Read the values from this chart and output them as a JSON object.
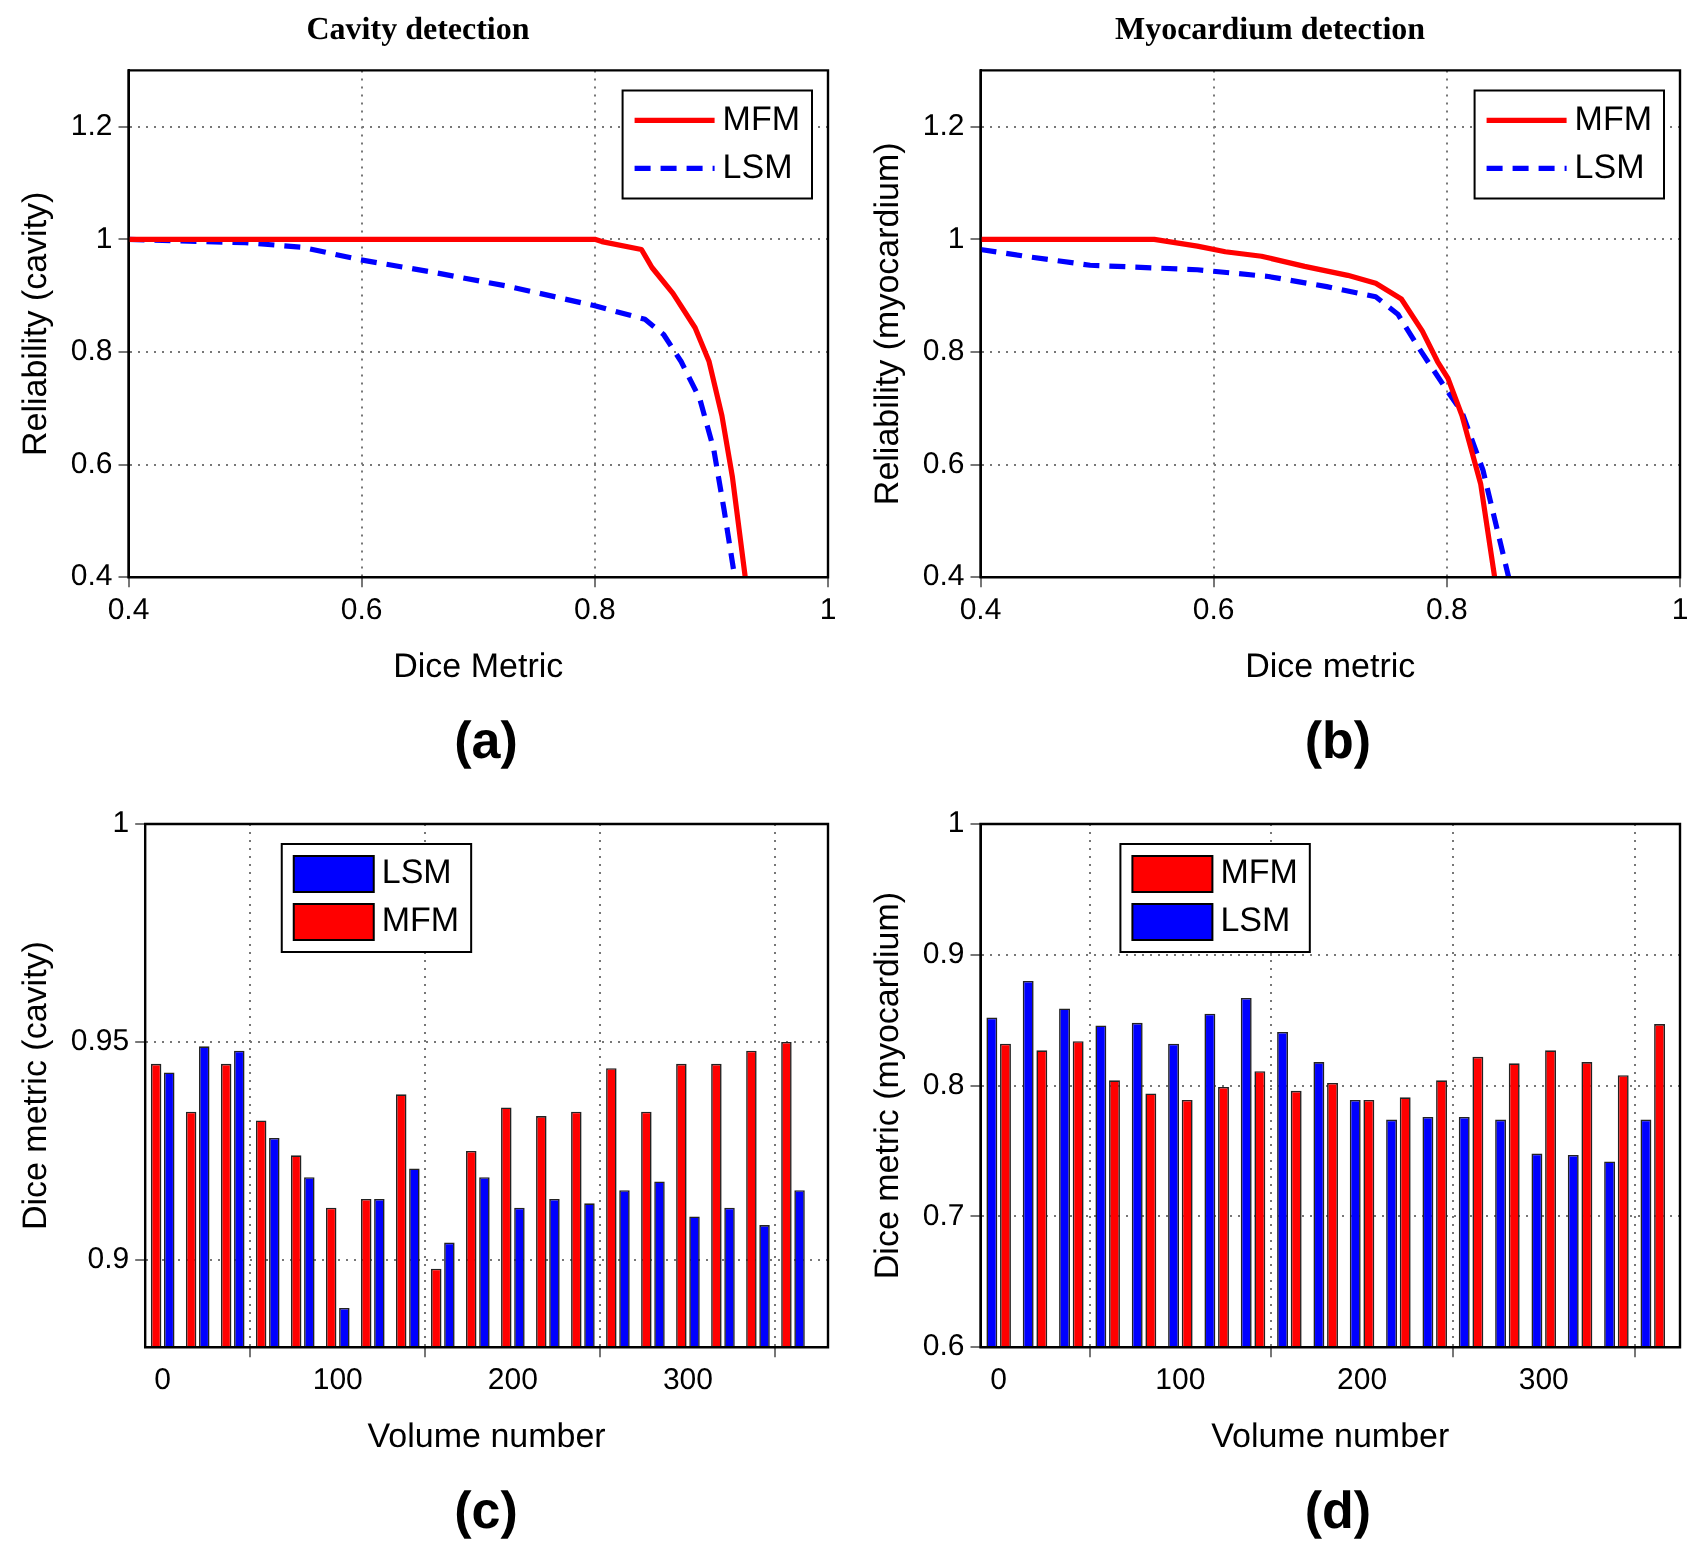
{
  "chart_data": [
    {
      "type": "line",
      "title": "Cavity detection",
      "xlabel": "Dice Metric",
      "ylabel": "Reliability (cavity)",
      "xlim": [
        0.4,
        1
      ],
      "xticks": [
        0.4,
        0.6,
        0.8,
        1
      ],
      "ylim": [
        0.4,
        1.3
      ],
      "yticks": [
        0.4,
        0.6,
        0.8,
        1,
        1.2
      ],
      "grid": true,
      "legend": "top right",
      "marker": "none",
      "annotations": [
        "(a)"
      ],
      "series": [
        {
          "name": "MFM",
          "color": "#ff0000",
          "line_style": "solid",
          "x": [
            0.4,
            0.8,
            0.806,
            0.84,
            0.849,
            0.867,
            0.886,
            0.898,
            0.909,
            0.918,
            0.929
          ],
          "values": [
            1,
            1,
            0.996,
            0.982,
            0.95,
            0.904,
            0.843,
            0.783,
            0.687,
            0.578,
            0.4
          ]
        },
        {
          "name": "LSM",
          "color": "#0000ff",
          "line_style": "dashed",
          "x": [
            0.4,
            0.5,
            0.549,
            0.598,
            0.66,
            0.727,
            0.8,
            0.843,
            0.859,
            0.874,
            0.89,
            0.902,
            0.911,
            0.92
          ],
          "values": [
            1,
            0.994,
            0.986,
            0.964,
            0.942,
            0.916,
            0.882,
            0.858,
            0.831,
            0.783,
            0.717,
            0.627,
            0.518,
            0.4
          ]
        }
      ]
    },
    {
      "type": "line",
      "title": "Myocardium detection",
      "xlabel": "Dice metric",
      "ylabel": "Reliability (myocardium)",
      "xlim": [
        0.4,
        1
      ],
      "xticks": [
        0.4,
        0.6,
        0.8,
        1
      ],
      "ylim": [
        0.4,
        1.3
      ],
      "yticks": [
        0.4,
        0.6,
        0.8,
        1,
        1.2
      ],
      "grid": true,
      "legend": "top right",
      "marker": "none",
      "annotations": [
        "(b)"
      ],
      "series": [
        {
          "name": "MFM",
          "color": "#ff0000",
          "line_style": "solid",
          "x": [
            0.4,
            0.549,
            0.586,
            0.61,
            0.641,
            0.678,
            0.715,
            0.739,
            0.761,
            0.779,
            0.792,
            0.801,
            0.813,
            0.829,
            0.841
          ],
          "values": [
            1,
            1,
            0.988,
            0.978,
            0.97,
            0.952,
            0.936,
            0.922,
            0.894,
            0.837,
            0.783,
            0.753,
            0.687,
            0.566,
            0.4
          ]
        },
        {
          "name": "LSM",
          "color": "#0000ff",
          "line_style": "dashed",
          "x": [
            0.4,
            0.438,
            0.494,
            0.586,
            0.647,
            0.697,
            0.739,
            0.758,
            0.776,
            0.801,
            0.813,
            0.831,
            0.853
          ],
          "values": [
            0.982,
            0.97,
            0.954,
            0.946,
            0.934,
            0.916,
            0.898,
            0.867,
            0.807,
            0.729,
            0.693,
            0.59,
            0.4
          ]
        }
      ]
    },
    {
      "type": "bar",
      "xlabel": "Volume number",
      "ylabel": "Dice metric (cavity)",
      "x": [
        0,
        20,
        40,
        60,
        80,
        100,
        120,
        140,
        160,
        180,
        200,
        220,
        240,
        260,
        280,
        300,
        320,
        340,
        360
      ],
      "xlim": [
        -10,
        380
      ],
      "xticks": [
        0,
        100,
        200,
        300
      ],
      "ylim": [
        0.88,
        1
      ],
      "yticks": [
        0.9,
        0.95,
        1
      ],
      "grid": true,
      "legend": "top left",
      "annotations": [
        "(c)"
      ],
      "series": [
        {
          "name": "LSM",
          "color": "#0000ff",
          "values": [
            0.943,
            0.949,
            0.948,
            0.928,
            0.919,
            0.889,
            0.914,
            0.921,
            0.904,
            0.919,
            0.912,
            0.914,
            0.913,
            0.916,
            0.918,
            0.91,
            0.912,
            0.908,
            0.916
          ]
        },
        {
          "name": "MFM",
          "color": "#ff0000",
          "values": [
            0.945,
            0.934,
            0.945,
            0.932,
            0.924,
            0.912,
            0.914,
            0.938,
            0.898,
            0.925,
            0.935,
            0.933,
            0.934,
            0.944,
            0.934,
            0.945,
            0.945,
            0.948,
            0.95
          ]
        }
      ]
    },
    {
      "type": "bar",
      "xlabel": "Volume number",
      "ylabel": "Dice metric (myocardium)",
      "x": [
        0,
        20,
        40,
        60,
        80,
        100,
        120,
        140,
        160,
        180,
        200,
        220,
        240,
        260,
        280,
        300,
        320,
        340,
        360
      ],
      "xlim": [
        -10,
        375
      ],
      "xticks": [
        0,
        100,
        200,
        300
      ],
      "ylim": [
        0.6,
        1
      ],
      "yticks": [
        0.6,
        0.7,
        0.8,
        0.9,
        1
      ],
      "grid": true,
      "legend": "top left",
      "annotations": [
        "(d)"
      ],
      "series": [
        {
          "name": "MFM",
          "color": "#ff0000",
          "values": [
            0.832,
            0.827,
            0.834,
            0.804,
            0.794,
            0.789,
            0.799,
            0.811,
            0.796,
            0.802,
            0.789,
            0.791,
            0.804,
            0.822,
            0.817,
            0.827,
            0.818,
            0.808,
            0.847
          ]
        },
        {
          "name": "LSM",
          "color": "#0000ff",
          "values": [
            0.852,
            0.88,
            0.859,
            0.846,
            0.848,
            0.832,
            0.855,
            0.867,
            0.841,
            0.818,
            0.789,
            0.774,
            0.776,
            0.776,
            0.774,
            0.748,
            0.747,
            0.742,
            0.774
          ]
        }
      ]
    }
  ]
}
